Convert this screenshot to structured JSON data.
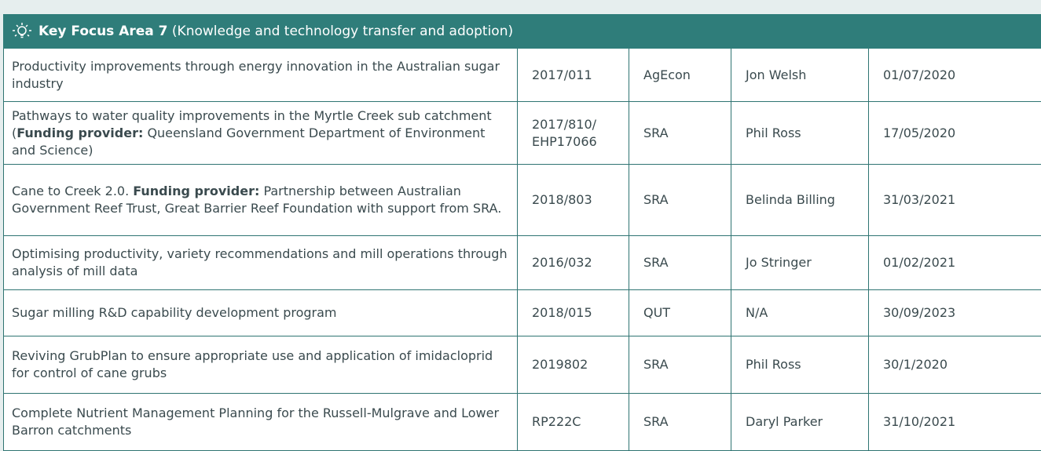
{
  "header": {
    "title": "Key Focus Area 7",
    "subtitle": " (Knowledge and technology transfer and adoption)"
  },
  "table": {
    "rows": [
      {
        "title": [
          {
            "text": "Productivity improvements through energy innovation in the Australian sugar industry",
            "bold": false
          }
        ],
        "code": "2017/011",
        "organisation": "AgEcon",
        "contact": "Jon Welsh",
        "date": "01/07/2020"
      },
      {
        "title": [
          {
            "text": "Pathways to water quality improvements in the Myrtle Creek sub catchment (",
            "bold": false
          },
          {
            "text": "Funding provider:",
            "bold": true
          },
          {
            "text": " Queensland Government Department of Environment and Science)",
            "bold": false
          }
        ],
        "code": "2017/810/ EHP17066",
        "organisation": "SRA",
        "contact": "Phil Ross",
        "date": "17/05/2020"
      },
      {
        "title": [
          {
            "text": "Cane to Creek 2.0. ",
            "bold": false
          },
          {
            "text": "Funding provider:",
            "bold": true
          },
          {
            "text": " Partnership between Australian Government Reef Trust, Great Barrier Reef Foundation with support from SRA.",
            "bold": false
          }
        ],
        "code": "2018/803",
        "organisation": "SRA",
        "contact": "Belinda Billing",
        "date": "31/03/2021"
      },
      {
        "title": [
          {
            "text": "Optimising productivity, variety recommendations and mill operations through analysis of mill data",
            "bold": false
          }
        ],
        "code": "2016/032",
        "organisation": "SRA",
        "contact": "Jo Stringer",
        "date": "01/02/2021"
      },
      {
        "title": [
          {
            "text": "Sugar milling R&D capability development program",
            "bold": false
          }
        ],
        "code": "2018/015",
        "organisation": "QUT",
        "contact": "N/A",
        "date": "30/09/2023"
      },
      {
        "title": [
          {
            "text": "Reviving GrubPlan to ensure appropriate use and application of imidacloprid for control of cane grubs",
            "bold": false
          }
        ],
        "code": "2019802",
        "organisation": "SRA",
        "contact": "Phil Ross",
        "date": "30/1/2020"
      },
      {
        "title": [
          {
            "text": "Complete Nutrient Management Planning for the Russell-Mulgrave and Lower Barron catchments",
            "bold": false
          }
        ],
        "code": "RP222C",
        "organisation": "SRA",
        "contact": "Daryl Parker",
        "date": "31/10/2021"
      }
    ]
  }
}
